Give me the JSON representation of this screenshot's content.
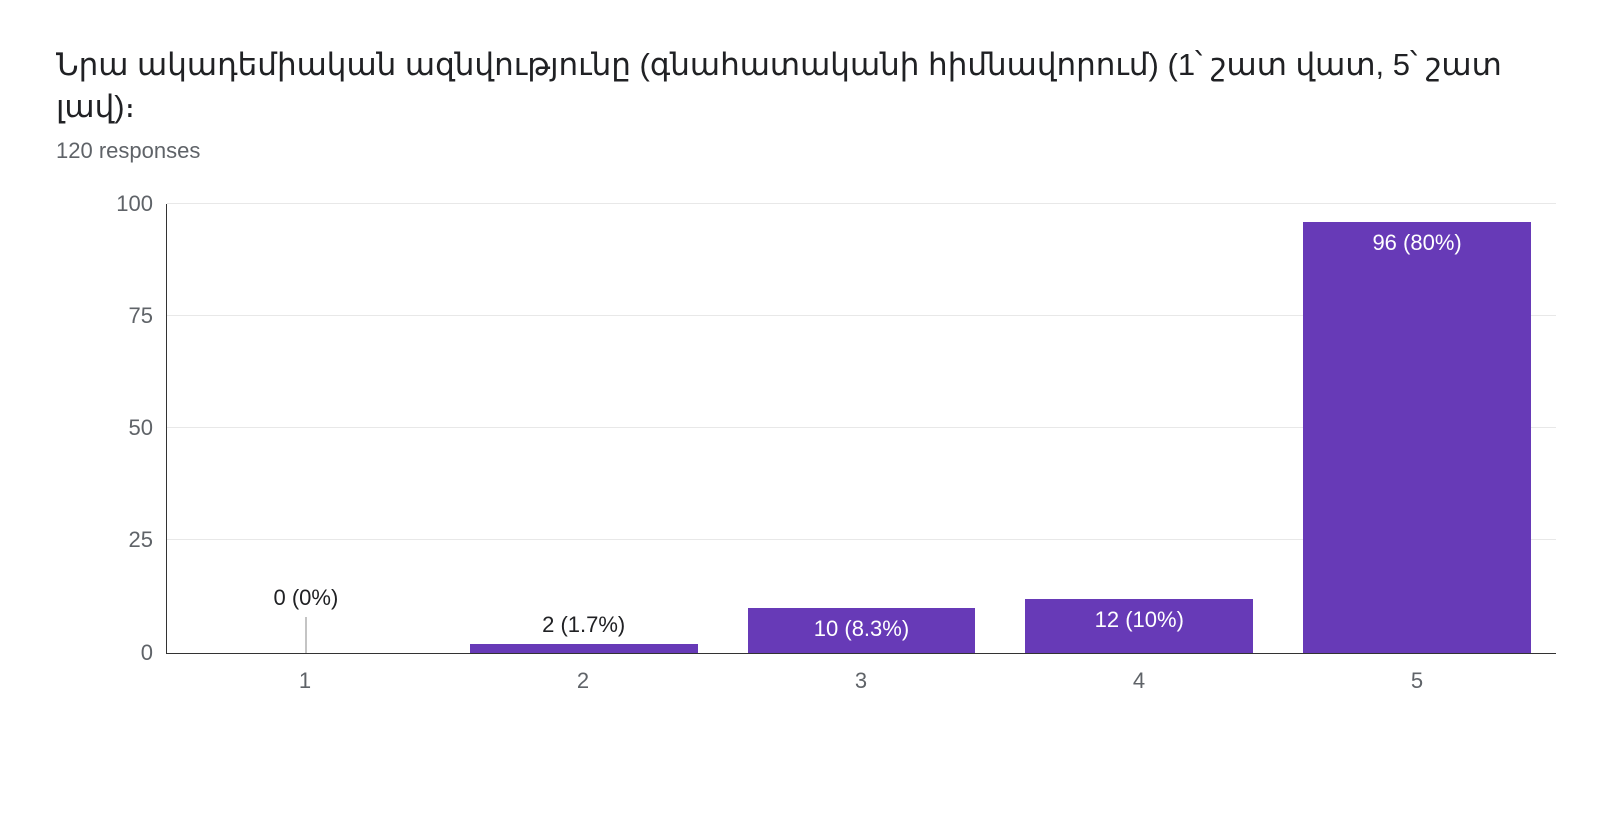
{
  "title": "Նրա ակադեմիական ազնվությունը (գնահատականի հիմնավորում)  (1՝ շատ վատ, 5՝ շատ լավ)։",
  "subtitle": "120 responses",
  "chart": {
    "type": "bar",
    "bar_color": "#673ab7",
    "background_color": "#ffffff",
    "grid_color": "#e8e8e8",
    "axis_color": "#333333",
    "label_color_outside": "#202124",
    "label_color_inside": "#ffffff",
    "tick_color": "#5f6368",
    "title_fontsize": 31,
    "subtitle_fontsize": 22,
    "tick_fontsize": 22,
    "barlabel_fontsize": 22,
    "ylim": [
      0,
      100
    ],
    "ytick_step": 25,
    "yticks": [
      {
        "v": 0,
        "label": "0"
      },
      {
        "v": 25,
        "label": "25"
      },
      {
        "v": 50,
        "label": "50"
      },
      {
        "v": 75,
        "label": "75"
      },
      {
        "v": 100,
        "label": "100"
      }
    ],
    "bar_width_pct": 82,
    "categories": [
      "1",
      "2",
      "3",
      "4",
      "5"
    ],
    "values": [
      0,
      2,
      10,
      12,
      96
    ],
    "value_labels": [
      "0 (0%)",
      "2 (1.7%)",
      "10 (8.3%)",
      "12 (10%)",
      "96 (80%)"
    ],
    "label_position": [
      "above",
      "above",
      "inside",
      "inside",
      "inside"
    ],
    "leader_line_for_zero": true
  }
}
